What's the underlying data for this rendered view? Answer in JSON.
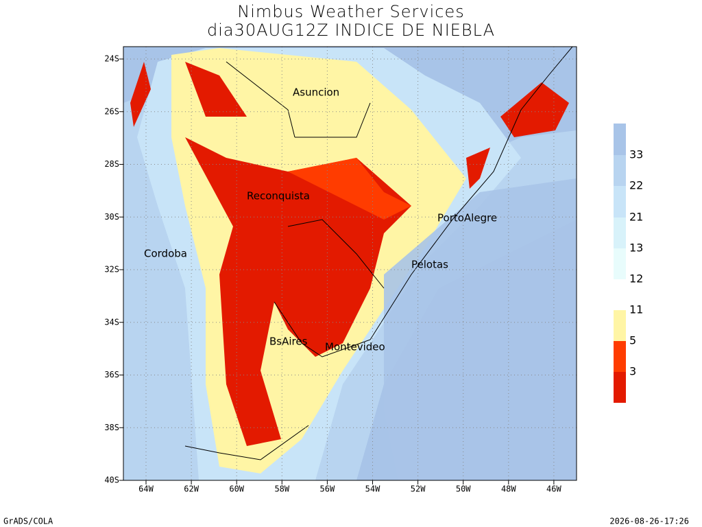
{
  "title": [
    "Nimbus Weather Services",
    "dia30AUG12Z INDICE DE NIEBLA"
  ],
  "lat_labels": [
    "24S",
    "26S",
    "28S",
    "30S",
    "32S",
    "34S",
    "36S",
    "38S",
    "40S"
  ],
  "lon_labels": [
    "64W",
    "62W",
    "60W",
    "58W",
    "56W",
    "54W",
    "52W",
    "50W",
    "48W",
    "46W"
  ],
  "cities": [
    "Asuncion",
    "Reconquista",
    "PortoAlegre",
    "Cordoba",
    "Pelotas",
    "BsAires",
    "Montevideo"
  ],
  "legend_labels": [
    "33",
    "22",
    "21",
    "13",
    "12",
    "11",
    "5",
    "3"
  ],
  "footer": {
    "left": "GrADS/COLA",
    "right": "2026-08-26-17:26"
  }
}
